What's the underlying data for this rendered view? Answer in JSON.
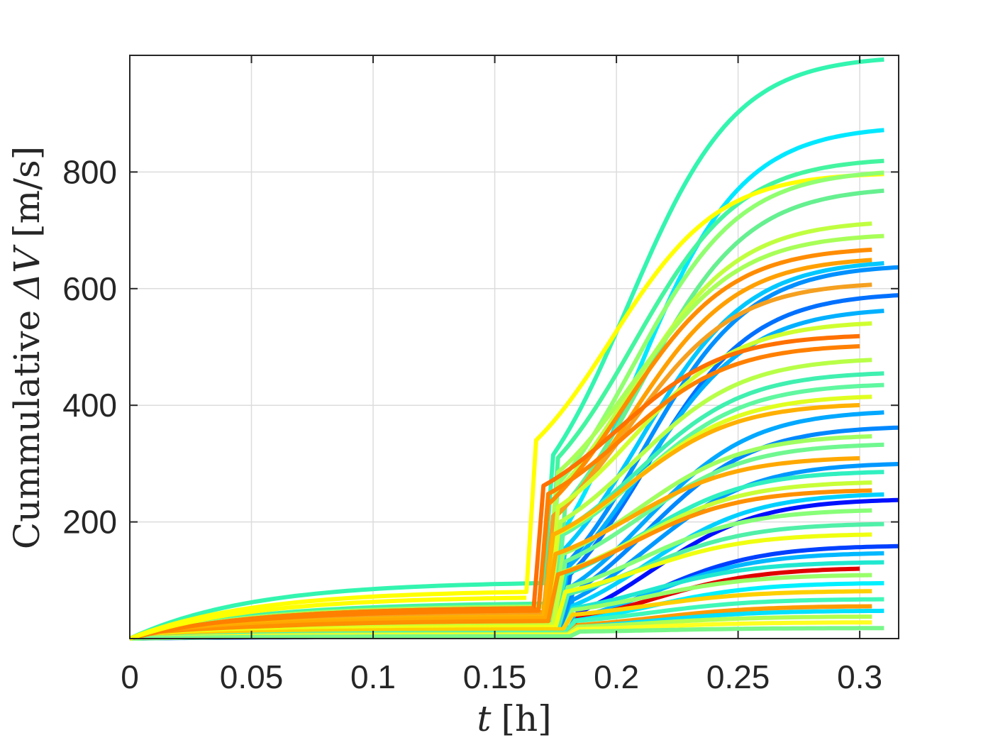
{
  "chart_data": {
    "type": "line",
    "xlabel": "t [h]",
    "ylabel": "Cummulative ΔV [m/s]",
    "xlabel_parts": {
      "var": "t",
      "unit": "[h]"
    },
    "ylabel_parts": {
      "prefix": "Cummulative ",
      "var": "ΔV",
      "unit": "[m/s]"
    },
    "xlim": [
      0,
      0.316
    ],
    "ylim": [
      0,
      1000
    ],
    "grid": true,
    "x_ticks": [
      0,
      0.05,
      0.1,
      0.15,
      0.2,
      0.25,
      0.3
    ],
    "x_tick_labels": [
      "0",
      "0.05",
      "0.1",
      "0.15",
      "0.2",
      "0.25",
      "0.3"
    ],
    "y_ticks": [
      200,
      400,
      600,
      800
    ],
    "y_tick_labels": [
      "200",
      "400",
      "600",
      "800"
    ],
    "colormap": [
      "#0000ff",
      "#0080ff",
      "#00ffff",
      "#2ff5b0",
      "#80ff80",
      "#c0ff40",
      "#ffff00",
      "#ffa000",
      "#ff6000"
    ],
    "series": [
      {
        "color": "#33f5b0",
        "pre": 95,
        "burn_t": 0.17,
        "jump": 220,
        "final": 1000,
        "t_end": 0.31
      },
      {
        "color": "#00e8ff",
        "pre": 20,
        "burn_t": 0.172,
        "jump": 150,
        "final": 880,
        "t_end": 0.31
      },
      {
        "color": "#44f5a0",
        "pre": 60,
        "burn_t": 0.172,
        "jump": 250,
        "final": 825,
        "t_end": 0.31
      },
      {
        "color": "#ffff00",
        "pre": 80,
        "burn_t": 0.163,
        "jump": 260,
        "final": 800,
        "t_end": 0.31
      },
      {
        "color": "#90ff70",
        "pre": 45,
        "burn_t": 0.172,
        "jump": 220,
        "final": 805,
        "t_end": 0.31
      },
      {
        "color": "#66f090",
        "pre": 30,
        "burn_t": 0.175,
        "jump": 200,
        "final": 775,
        "t_end": 0.31
      },
      {
        "color": "#c0ff40",
        "pre": 40,
        "burn_t": 0.171,
        "jump": 210,
        "final": 718,
        "t_end": 0.305
      },
      {
        "color": "#a8ff58",
        "pre": 55,
        "burn_t": 0.172,
        "jump": 230,
        "final": 695,
        "t_end": 0.31
      },
      {
        "color": "#ff8c00",
        "pre": 50,
        "burn_t": 0.168,
        "jump": 180,
        "final": 672,
        "t_end": 0.305
      },
      {
        "color": "#ffa000",
        "pre": 45,
        "burn_t": 0.17,
        "jump": 160,
        "final": 655,
        "t_end": 0.305
      },
      {
        "color": "#00c8ff",
        "pre": 15,
        "burn_t": 0.175,
        "jump": 140,
        "final": 650,
        "t_end": 0.31
      },
      {
        "color": "#0090ff",
        "pre": 10,
        "burn_t": 0.176,
        "jump": 120,
        "final": 642,
        "t_end": 0.316
      },
      {
        "color": "#f5a020",
        "pre": 40,
        "burn_t": 0.17,
        "jump": 170,
        "final": 612,
        "t_end": 0.305
      },
      {
        "color": "#0070ff",
        "pre": 10,
        "burn_t": 0.177,
        "jump": 100,
        "final": 594,
        "t_end": 0.316
      },
      {
        "color": "#00b0ff",
        "pre": 12,
        "burn_t": 0.176,
        "jump": 110,
        "final": 568,
        "t_end": 0.31
      },
      {
        "color": "#d0ff30",
        "pre": 35,
        "burn_t": 0.172,
        "jump": 190,
        "final": 545,
        "t_end": 0.305
      },
      {
        "color": "#ff7000",
        "pre": 52,
        "burn_t": 0.166,
        "jump": 210,
        "final": 522,
        "t_end": 0.3
      },
      {
        "color": "#ff8000",
        "pre": 48,
        "burn_t": 0.168,
        "jump": 200,
        "final": 505,
        "t_end": 0.3
      },
      {
        "color": "#b8ff48",
        "pre": 30,
        "burn_t": 0.173,
        "jump": 170,
        "final": 482,
        "t_end": 0.305
      },
      {
        "color": "#40f0b0",
        "pre": 25,
        "burn_t": 0.174,
        "jump": 160,
        "final": 458,
        "t_end": 0.31
      },
      {
        "color": "#60f8a0",
        "pre": 28,
        "burn_t": 0.174,
        "jump": 150,
        "final": 438,
        "t_end": 0.31
      },
      {
        "color": "#e0ff20",
        "pre": 30,
        "burn_t": 0.172,
        "jump": 150,
        "final": 418,
        "t_end": 0.305
      },
      {
        "color": "#ffb000",
        "pre": 38,
        "burn_t": 0.17,
        "jump": 140,
        "final": 404,
        "t_end": 0.3
      },
      {
        "color": "#00a8ff",
        "pre": 8,
        "burn_t": 0.177,
        "jump": 80,
        "final": 392,
        "t_end": 0.31
      },
      {
        "color": "#0088ff",
        "pre": 8,
        "burn_t": 0.178,
        "jump": 70,
        "final": 365,
        "t_end": 0.316
      },
      {
        "color": "#a0ff60",
        "pre": 25,
        "burn_t": 0.174,
        "jump": 120,
        "final": 350,
        "t_end": 0.305
      },
      {
        "color": "#70f890",
        "pre": 22,
        "burn_t": 0.175,
        "jump": 110,
        "final": 335,
        "t_end": 0.31
      },
      {
        "color": "#ffa800",
        "pre": 35,
        "burn_t": 0.171,
        "jump": 110,
        "final": 312,
        "t_end": 0.3
      },
      {
        "color": "#0098ff",
        "pre": 6,
        "burn_t": 0.178,
        "jump": 60,
        "final": 302,
        "t_end": 0.316
      },
      {
        "color": "#30f0c0",
        "pre": 20,
        "burn_t": 0.175,
        "jump": 90,
        "final": 288,
        "t_end": 0.31
      },
      {
        "color": "#c8ff38",
        "pre": 24,
        "burn_t": 0.174,
        "jump": 90,
        "final": 270,
        "t_end": 0.305
      },
      {
        "color": "#ff9000",
        "pre": 30,
        "burn_t": 0.172,
        "jump": 80,
        "final": 256,
        "t_end": 0.305
      },
      {
        "color": "#00d0ff",
        "pre": 6,
        "burn_t": 0.178,
        "jump": 50,
        "final": 250,
        "t_end": 0.31
      },
      {
        "color": "#0010ff",
        "pre": 4,
        "burn_t": 0.18,
        "jump": 40,
        "final": 240,
        "t_end": 0.316
      },
      {
        "color": "#88ff78",
        "pre": 18,
        "burn_t": 0.176,
        "jump": 70,
        "final": 222,
        "t_end": 0.305
      },
      {
        "color": "#50f0a8",
        "pre": 16,
        "burn_t": 0.176,
        "jump": 60,
        "final": 198,
        "t_end": 0.31
      },
      {
        "color": "#f0ff10",
        "pre": 20,
        "burn_t": 0.175,
        "jump": 60,
        "final": 180,
        "t_end": 0.305
      },
      {
        "color": "#0040ff",
        "pre": 3,
        "burn_t": 0.18,
        "jump": 30,
        "final": 160,
        "t_end": 0.316
      },
      {
        "color": "#00b8ff",
        "pre": 5,
        "burn_t": 0.179,
        "jump": 30,
        "final": 148,
        "t_end": 0.31
      },
      {
        "color": "#20e8d0",
        "pre": 12,
        "burn_t": 0.178,
        "jump": 40,
        "final": 132,
        "t_end": 0.31
      },
      {
        "color": "#e00000",
        "pre": 5,
        "burn_t": 0.18,
        "jump": 30,
        "final": 122,
        "t_end": 0.3
      },
      {
        "color": "#98ff68",
        "pre": 14,
        "burn_t": 0.178,
        "jump": 35,
        "final": 110,
        "t_end": 0.305
      },
      {
        "color": "#00f0ff",
        "pre": 6,
        "burn_t": 0.179,
        "jump": 25,
        "final": 96,
        "t_end": 0.31
      },
      {
        "color": "#ffd000",
        "pre": 16,
        "burn_t": 0.178,
        "jump": 25,
        "final": 82,
        "t_end": 0.305
      },
      {
        "color": "#40f8b8",
        "pre": 10,
        "burn_t": 0.179,
        "jump": 20,
        "final": 68,
        "t_end": 0.31
      },
      {
        "color": "#ff9a00",
        "pre": 8,
        "burn_t": 0.18,
        "jump": 15,
        "final": 56,
        "t_end": 0.305
      },
      {
        "color": "#00e0ff",
        "pre": 5,
        "burn_t": 0.18,
        "jump": 15,
        "final": 48,
        "t_end": 0.31
      },
      {
        "color": "#b0ff50",
        "pre": 8,
        "burn_t": 0.18,
        "jump": 12,
        "final": 38,
        "t_end": 0.305
      },
      {
        "color": "#ffff20",
        "pre": 6,
        "burn_t": 0.18,
        "jump": 10,
        "final": 28,
        "t_end": 0.305
      },
      {
        "color": "#78f888",
        "pre": 4,
        "burn_t": 0.181,
        "jump": 8,
        "final": 18,
        "t_end": 0.31
      },
      {
        "color": "#ff8000",
        "pre": 52,
        "burn_t": 0.166,
        "jump": 0,
        "final": 52,
        "t_end": 0.166
      },
      {
        "color": "#ffff00",
        "pre": 70,
        "burn_t": 0.163,
        "jump": 0,
        "final": 70,
        "t_end": 0.163
      }
    ]
  }
}
